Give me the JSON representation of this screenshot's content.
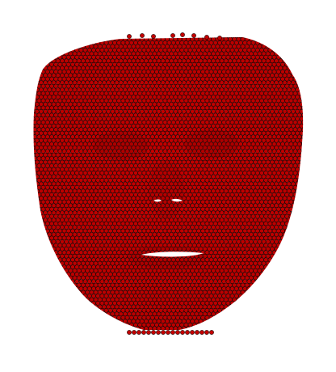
{
  "scene": {
    "subject": "face-point-cloud",
    "background_color": "#ffffff",
    "point_fill_color": "#c40000",
    "point_stroke_color": "#1a0000",
    "shade_color": "#6a0000"
  }
}
